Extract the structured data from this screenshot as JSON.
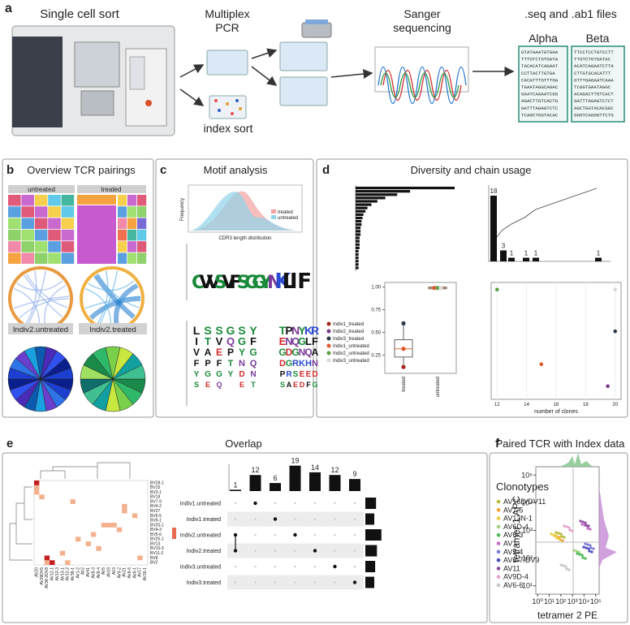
{
  "a": {
    "label": "a",
    "sort_title": "Single cell sort",
    "pcr_title": [
      "Multiplex",
      "PCR"
    ],
    "index_sort": "index sort",
    "sanger_title": [
      "Sanger",
      "sequencing"
    ],
    "files_title": ".seq and .ab1 files",
    "alpha": {
      "name": "Alpha",
      "seqs": [
        "GTATAAATGTGAA",
        "TTTGTCTGTGATA",
        "TACACATCAGAAT",
        "CCTTACTTGTGA",
        "CACATTTGTTTGA",
        "TGAATAGGCAGAC",
        "GAATCAAAATCGG",
        "AGACTTGTCACTG",
        "GATTTAGAGTCTC",
        "TCAGCTGGTACAC"
      ]
    },
    "beta": {
      "name": "Beta",
      "seqs": [
        "TTCCTCCTGTCCTT",
        "TTGTCTGTGATAC",
        "ACATCAGAATCTTA",
        "CTTGTGCACATTT",
        "GTTTGAGAATCAAA",
        "TCGGTGAATAGGC",
        "ACAGACTTGTCACT",
        "GATTTAGAGTCTCT",
        "AGCTGGTACACGGC",
        "GGGTCAGGGTTCTG"
      ]
    }
  },
  "b": {
    "label": "b",
    "title": "Overview TCR pairings",
    "groups": [
      "untreated",
      "treated"
    ],
    "indiv": [
      "Indiv2.untreated",
      "Indiv2.treated"
    ]
  },
  "c": {
    "label": "c",
    "title": "Motif analysis",
    "density": {
      "x_label": "CDR3 length distribution",
      "y_label": "Frequency",
      "legend": [
        {
          "name": "treated",
          "color": "#f4a3a3"
        },
        {
          "name": "untreated",
          "color": "#8fd3ea"
        }
      ]
    },
    "logo_top": [
      "C",
      "V",
      "V",
      "S",
      "V",
      "F",
      "S",
      "G",
      "G",
      "Y",
      "N",
      "K",
      "L",
      "I",
      "F"
    ],
    "logo_bottom": [
      "LIVFYS",
      "STAPGE",
      "SVEFGQ",
      "GQPTY",
      "SGYNDE",
      "YFGQNT",
      "TEGDPS",
      "PNDGRA",
      "NQGRSE",
      "YGNKED",
      "KLQHEF",
      "RFANDG"
    ]
  },
  "d": {
    "label": "d",
    "title": "Diversity and chain usage",
    "gene_usage": {
      "values": [
        100,
        55,
        42,
        30,
        22,
        16,
        12,
        10,
        8,
        7,
        6,
        6,
        5,
        5,
        5,
        4,
        4,
        4,
        4,
        3,
        3,
        3,
        3,
        3,
        3
      ],
      "xlim": [
        0,
        100
      ]
    },
    "clone_bars": {
      "values": [
        18,
        3,
        1,
        1,
        1,
        1
      ],
      "ylim": [
        0,
        20
      ]
    },
    "box": {
      "categories": [
        "treated",
        "untreated"
      ],
      "ylim": [
        0.05,
        1.05
      ],
      "yticks": [
        {
          "value": 0.25,
          "label": "0.25"
        },
        {
          "value": 0.5,
          "label": "0.50"
        },
        {
          "value": 0.75,
          "label": "0.75"
        },
        {
          "value": 1.0,
          "label": "1.00"
        }
      ],
      "stats": [
        {
          "min": 0.12,
          "q1": 0.23,
          "median": 0.32,
          "q3": 0.42,
          "max": 0.6
        },
        {
          "min": 0.97,
          "q1": 0.98,
          "median": 0.99,
          "q3": 1.0,
          "max": 1.01
        }
      ],
      "points": [
        [
          0.12,
          0.32,
          0.6
        ],
        [
          0.99,
          0.99,
          0.99
        ]
      ]
    },
    "legend": [
      {
        "name": "Indiv1_treated",
        "color": "#a3281e"
      },
      {
        "name": "Indiv2_treated",
        "color": "#7b3a8c"
      },
      {
        "name": "Indiv3_treated",
        "color": "#2b3a4a"
      },
      {
        "name": "Indiv1_untreated",
        "color": "#e0562c"
      },
      {
        "name": "Indiv2_untreated",
        "color": "#5aa046"
      },
      {
        "name": "Indiv3_untreated",
        "color": "#d9d9d9"
      }
    ],
    "scatter": {
      "x_label": "number of clones",
      "xlim": [
        11.6,
        20.4
      ],
      "ylim": [
        0,
        1.05
      ],
      "xticks": [
        12,
        14,
        16,
        18,
        20
      ],
      "x": [
        12,
        15,
        19.5,
        20,
        20
      ],
      "y": [
        1.0,
        0.32,
        0.12,
        0.62,
        1.0
      ],
      "colors": [
        "#5aa046",
        "#e0562c",
        "#7b3a8c",
        "#2b3a4a",
        "#d9d9d9"
      ]
    }
  },
  "e": {
    "label": "e",
    "title": "Overlap",
    "heatmap": {
      "rows": [
        "BV28-1",
        "BV15",
        "BV3-1",
        "BV18",
        "BV7-9",
        "BV4-2",
        "BV27",
        "BV6-5",
        "BV9-1",
        "BV20-1",
        "BV4-3",
        "BV5-6",
        "BV25-1",
        "BV13",
        "BV10-3",
        "BV11-2",
        "BV8",
        "BV2"
      ],
      "columns": [
        "AV20",
        "AV29DV5",
        "AV38-2DV8",
        "AV12-1",
        "AV12-3",
        "AV13-1",
        "AV12-2",
        "AV38-1",
        "AV1-2",
        "AV2",
        "AV41",
        "AV8-3",
        "AV8-4",
        "AV5",
        "AV19",
        "AV3",
        "AV9-2",
        "AV21",
        "AV8-6",
        "AV8-1",
        "AV17",
        "AV26-1"
      ]
    },
    "upset": {
      "sets": [
        "Indiv1.untreated",
        "Indiv1.treated",
        "Indiv2.untreated",
        "Indiv2.treated",
        "Indiv3.untreated",
        "Indiv3.treated"
      ],
      "values": [
        1,
        12,
        6,
        19,
        14,
        12,
        9
      ],
      "ylim": [
        0,
        20
      ],
      "members": [
        [
          2,
          3
        ],
        [
          0
        ],
        [
          1
        ],
        [
          2
        ],
        [
          3
        ],
        [
          4
        ],
        [
          5
        ]
      ],
      "set_sizes": [
        12,
        10,
        18,
        13,
        11,
        10
      ],
      "set_xlim": [
        0,
        20
      ]
    }
  },
  "f": {
    "label": "f",
    "title": "Paired TCR with Index data",
    "legend_title": "Clonotypes",
    "clonotypes": [
      {
        "name": "AV16D/DV11",
        "color": "#b9b93c"
      },
      {
        "name": "AV7-5",
        "color": "#f0a233"
      },
      {
        "name": "AV13N-1",
        "color": "#e8cf3f"
      },
      {
        "name": "AV6D-4",
        "color": "#9fd17f"
      },
      {
        "name": "AV6-3",
        "color": "#4fb857"
      },
      {
        "name": "AV1",
        "color": "#c46ac4"
      },
      {
        "name": "AV5-4",
        "color": "#7a7ad6"
      },
      {
        "name": "AV6-7/DV9",
        "color": "#4b4bbd"
      },
      {
        "name": "AV11",
        "color": "#8a4f9e"
      },
      {
        "name": "AV9D-4",
        "color": "#e6a3cf"
      },
      {
        "name": "AV6-6",
        "color": "#c7c7c7"
      }
    ],
    "x_label": "tetramer 2 PE",
    "y_label": "tetramer 1 APC",
    "log": true,
    "xlim": [
      0.7,
      200000
    ],
    "ylim": [
      5,
      200000
    ],
    "xticks": [
      {
        "value": 1,
        "label": "10⁰"
      },
      {
        "value": 10,
        "label": "10¹"
      },
      {
        "value": 100,
        "label": "10²"
      },
      {
        "value": 1000,
        "label": "10³"
      },
      {
        "value": 10000,
        "label": "10⁴"
      },
      {
        "value": 100000,
        "label": "10⁵"
      }
    ],
    "yticks": [
      {
        "value": 10,
        "label": "10¹"
      },
      {
        "value": 100,
        "label": "10²"
      },
      {
        "value": 1000,
        "label": "10³"
      },
      {
        "value": 10000,
        "label": "10⁴"
      },
      {
        "value": 100000,
        "label": "10⁵"
      }
    ]
  }
}
